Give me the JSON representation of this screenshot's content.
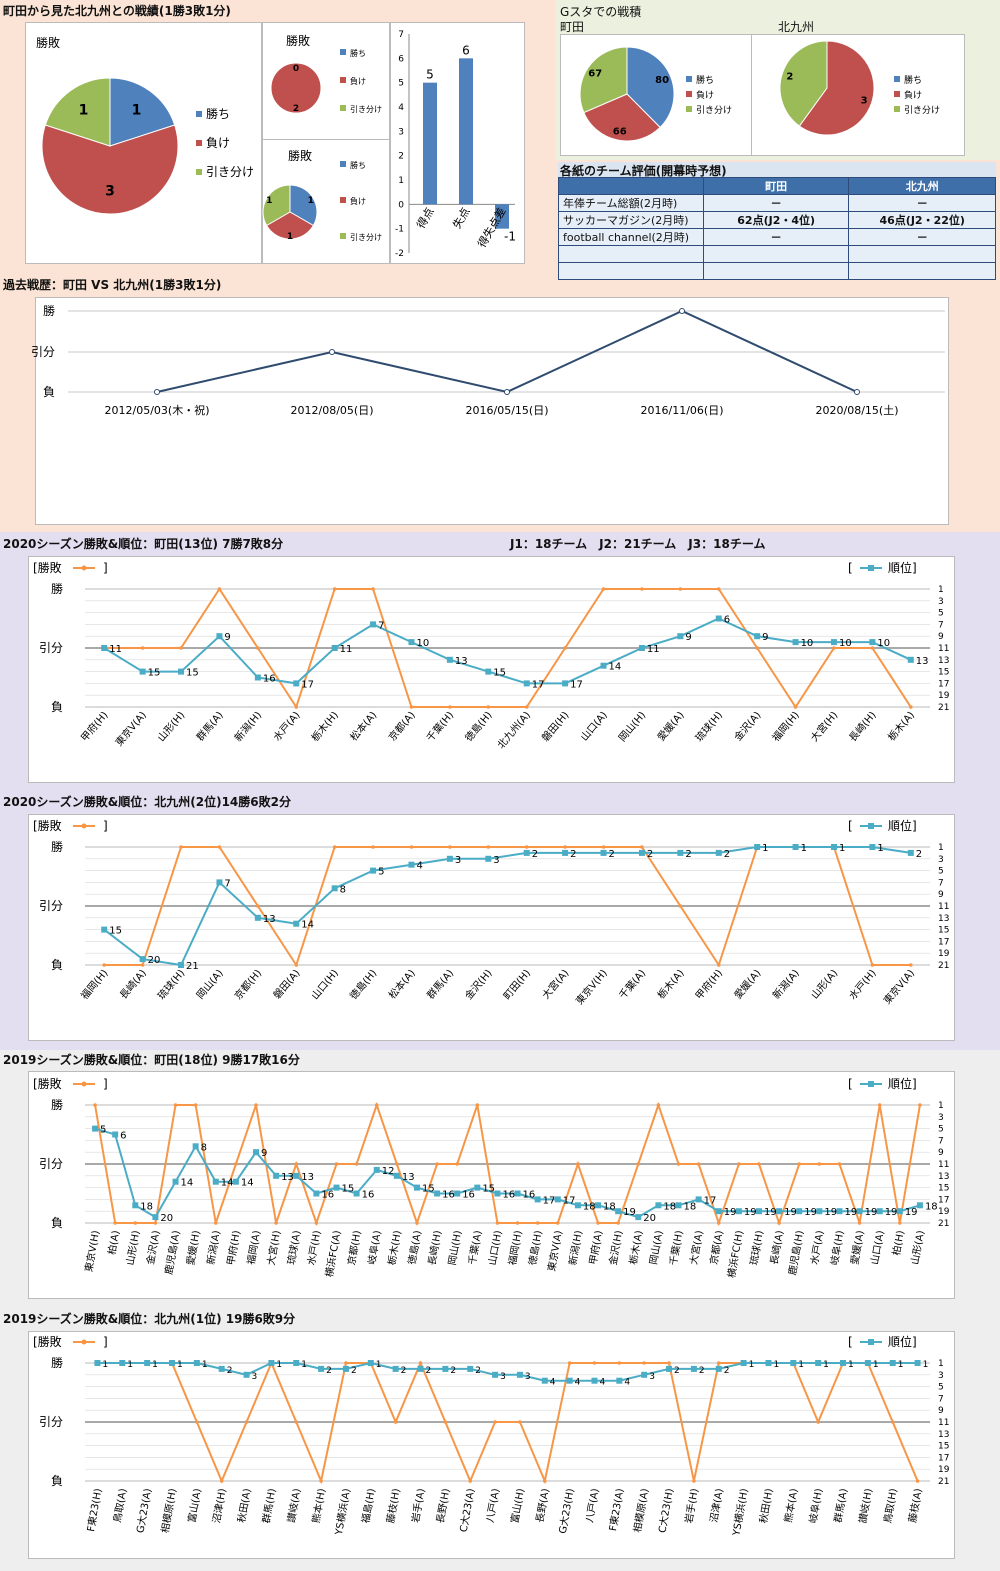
{
  "header": {
    "title": "町田から見た北九州との戦績(1勝3敗1分)",
    "gsta_title": "Gスタでの戦積",
    "gsta_left": "町田",
    "gsta_right": "北九州"
  },
  "table": {
    "title": "各紙のチーム評価(開幕時予想)",
    "head": [
      "",
      "町田",
      "北九州"
    ],
    "rows": [
      [
        "年俸チーム総額(2月時)",
        "－",
        "－"
      ],
      [
        "サッカーマガジン(2月時)",
        "62点(J2・4位)",
        "46点(J2・22位)"
      ],
      [
        "football channel(2月時)",
        "－",
        "－"
      ],
      [
        "",
        "",
        ""
      ],
      [
        "",
        "",
        ""
      ]
    ]
  },
  "sections": {
    "history": "過去戦歴：町田 VS 北九州(1勝3敗1分)",
    "s2020m": "2020シーズン勝敗&順位：町田(13位) 7勝7敗8分",
    "teams_note": "J1：18チーム　J2：21チーム　J3：18チーム",
    "s2020k": "2020シーズン勝敗&順位：北九州(2位)14勝6敗2分",
    "s2019m": "2019シーズン勝敗&順位：町田(18位) 9勝17敗16分",
    "s2019k": "2019シーズン勝敗&順位：北九州(1位) 19勝6敗9分"
  },
  "legend_common": {
    "win": "勝ち",
    "loss": "負け",
    "draw": "引き分け",
    "wl": "[勝敗",
    "wl_close": "]",
    "rank_open": "[",
    "rank": "順位]"
  },
  "colors": {
    "win": "#4f81bd",
    "loss": "#c0504d",
    "draw": "#9bbb59",
    "orange": "#f79646",
    "teal": "#4bacc6",
    "navy": "#2f4b6e",
    "bg_top": "#fbe4d5",
    "bg_2020": "#e4dff0",
    "bg_2019": "#eeeeee",
    "bg_gsta": "#ebf1de"
  },
  "chart_data": [
    {
      "type": "pie",
      "title": "勝敗",
      "categories": [
        "勝ち",
        "負け",
        "引き分け"
      ],
      "values": [
        1,
        3,
        1
      ]
    },
    {
      "type": "pie",
      "title": "勝敗",
      "categories": [
        "勝ち",
        "負け",
        "引き分け"
      ],
      "values": [
        0,
        2,
        0
      ]
    },
    {
      "type": "pie",
      "title": "勝敗",
      "categories": [
        "勝ち",
        "負け",
        "引き分け"
      ],
      "values": [
        1,
        1,
        1
      ]
    },
    {
      "type": "bar",
      "categories": [
        "得点",
        "失点",
        "得失点差"
      ],
      "values": [
        5,
        6,
        -1
      ],
      "ylim": [
        -2,
        7
      ]
    },
    {
      "type": "pie",
      "title": "町田",
      "categories": [
        "勝ち",
        "負け",
        "引き分け"
      ],
      "values": [
        80,
        66,
        67
      ]
    },
    {
      "type": "pie",
      "title": "北九州",
      "categories": [
        "勝ち",
        "負け",
        "引き分け"
      ],
      "values": [
        0,
        3,
        2
      ]
    },
    {
      "type": "line",
      "title": "過去戦歴：町田 VS 北九州(1勝3敗1分)",
      "x": [
        "2012/05/03(木・祝)",
        "2012/08/05(日)",
        "2016/05/15(日)",
        "2016/11/06(日)",
        "2020/08/15(土)"
      ],
      "y_labels": [
        "勝",
        "引分",
        "負"
      ],
      "values": [
        "負",
        "引分",
        "負",
        "勝",
        "負"
      ]
    },
    {
      "type": "line",
      "title": "2020シーズン勝敗&順位：町田(13位) 7勝7敗8分",
      "x": [
        "甲府(H)",
        "東京V(A)",
        "山形(H)",
        "群馬(A)",
        "新潟(H)",
        "水戸(A)",
        "栃木(H)",
        "松本(A)",
        "京都(A)",
        "千葉(H)",
        "徳島(H)",
        "北九州(A)",
        "磐田(H)",
        "山口(A)",
        "岡山(H)",
        "愛媛(A)",
        "琉球(H)",
        "金沢(A)",
        "福岡(H)",
        "大宮(H)",
        "長崎(H)",
        "栃木(A)"
      ],
      "results": [
        "D",
        "D",
        "D",
        "W",
        "D",
        "L",
        "W",
        "W",
        "L",
        "L",
        "L",
        "L",
        "D",
        "W",
        "W",
        "W",
        "W",
        "D",
        "L",
        "D",
        "D",
        "L"
      ],
      "ranks": [
        11,
        15,
        15,
        9,
        16,
        17,
        11,
        7,
        10,
        13,
        15,
        17,
        17,
        14,
        11,
        9,
        6,
        9,
        10,
        10,
        10,
        13
      ]
    },
    {
      "type": "line",
      "title": "2020シーズン勝敗&順位：北九州(2位)14勝6敗2分",
      "x": [
        "福岡(H)",
        "長崎(A)",
        "琉球(H)",
        "岡山(A)",
        "京都(H)",
        "磐田(A)",
        "山口(H)",
        "徳島(H)",
        "松本(A)",
        "群馬(A)",
        "金沢(H)",
        "町田(H)",
        "大宮(A)",
        "東京V(H)",
        "千葉(A)",
        "栃木(A)",
        "甲府(H)",
        "愛媛(A)",
        "新潟(A)",
        "山形(A)",
        "水戸(H)",
        "東京V(A)"
      ],
      "results": [
        "L",
        "L",
        "W",
        "W",
        "D",
        "L",
        "W",
        "W",
        "W",
        "W",
        "W",
        "W",
        "W",
        "W",
        "W",
        "D",
        "L",
        "W",
        "W",
        "W",
        "L",
        "L"
      ],
      "ranks": [
        15,
        20,
        21,
        7,
        13,
        14,
        8,
        5,
        4,
        3,
        3,
        2,
        2,
        2,
        2,
        2,
        2,
        1,
        1,
        1,
        1,
        2
      ]
    },
    {
      "type": "line",
      "title": "2019シーズン勝敗&順位：町田(18位) 9勝17敗16分",
      "x": [
        "東京V(H)",
        "柏(A)",
        "山形(H)",
        "金沢(A)",
        "鹿児島(A)",
        "愛媛(H)",
        "新潟(A)",
        "甲府(H)",
        "福岡(A)",
        "大宮(H)",
        "琉球(A)",
        "水戸(H)",
        "横浜FC(A)",
        "京都(H)",
        "岐阜(A)",
        "栃木(H)",
        "徳島(A)",
        "長崎(H)",
        "岡山(H)",
        "千葉(A)",
        "山口(H)",
        "福岡(H)",
        "徳島(H)",
        "東京V(A)",
        "新潟(H)",
        "甲府(A)",
        "金沢(H)",
        "栃木(A)",
        "岡山(A)",
        "千葉(H)",
        "大宮(A)",
        "京都(A)",
        "横浜FC(H)",
        "琉球(H)",
        "長崎(A)",
        "鹿児島(H)",
        "水戸(A)",
        "岐阜(H)",
        "愛媛(A)",
        "山口(A)",
        "柏(H)",
        "山形(A)"
      ],
      "results": [
        "W",
        "L",
        "L",
        "L",
        "W",
        "W",
        "L",
        "D",
        "W",
        "L",
        "D",
        "L",
        "D",
        "D",
        "W",
        "D",
        "L",
        "D",
        "D",
        "W",
        "L",
        "L",
        "L",
        "L",
        "D",
        "L",
        "L",
        "D",
        "W",
        "D",
        "D",
        "L",
        "D",
        "D",
        "L",
        "D",
        "D",
        "D",
        "L",
        "W",
        "L",
        "W"
      ],
      "ranks": [
        5,
        6,
        18,
        20,
        14,
        8,
        14,
        14,
        9,
        13,
        13,
        16,
        15,
        16,
        12,
        13,
        15,
        16,
        16,
        15,
        16,
        16,
        17,
        17,
        18,
        18,
        19,
        20,
        18,
        18,
        17,
        19,
        19,
        19,
        19,
        19,
        19,
        19,
        19,
        19,
        19,
        18
      ]
    },
    {
      "type": "line",
      "title": "2019シーズン勝敗&順位：北九州(1位) 19勝6敗9分",
      "x": [
        "F東23(H)",
        "鳥取(A)",
        "G大23(A)",
        "相模原(H)",
        "富山(A)",
        "沼津(H)",
        "秋田(A)",
        "群馬(H)",
        "讃岐(A)",
        "熊本(H)",
        "YS横浜(A)",
        "福島(H)",
        "藤枝(H)",
        "岩手(A)",
        "長野(H)",
        "C大23(A)",
        "八戸(A)",
        "富山(H)",
        "長野(A)",
        "G大23(H)",
        "八戸(A)",
        "F東23(A)",
        "相模原(A)",
        "C大23(H)",
        "岩手(H)",
        "沼津(A)",
        "YS横浜(H)",
        "秋田(H)",
        "熊本(A)",
        "岐阜(H)",
        "群馬(A)",
        "讃岐(H)",
        "鳥取(H)",
        "藤枝(A)"
      ],
      "results": [
        "W",
        "W",
        "W",
        "W",
        "D",
        "L",
        "D",
        "W",
        "D",
        "L",
        "W",
        "W",
        "D",
        "W",
        "D",
        "L",
        "D",
        "D",
        "L",
        "W",
        "W",
        "W",
        "W",
        "W",
        "L",
        "W",
        "W",
        "W",
        "W",
        "D",
        "W",
        "W",
        "D",
        "L"
      ],
      "ranks": [
        1,
        1,
        1,
        1,
        1,
        2,
        3,
        1,
        1,
        2,
        2,
        1,
        2,
        2,
        2,
        2,
        3,
        3,
        4,
        4,
        4,
        4,
        3,
        2,
        2,
        2,
        1,
        1,
        1,
        1,
        1,
        1,
        1,
        1
      ]
    }
  ]
}
